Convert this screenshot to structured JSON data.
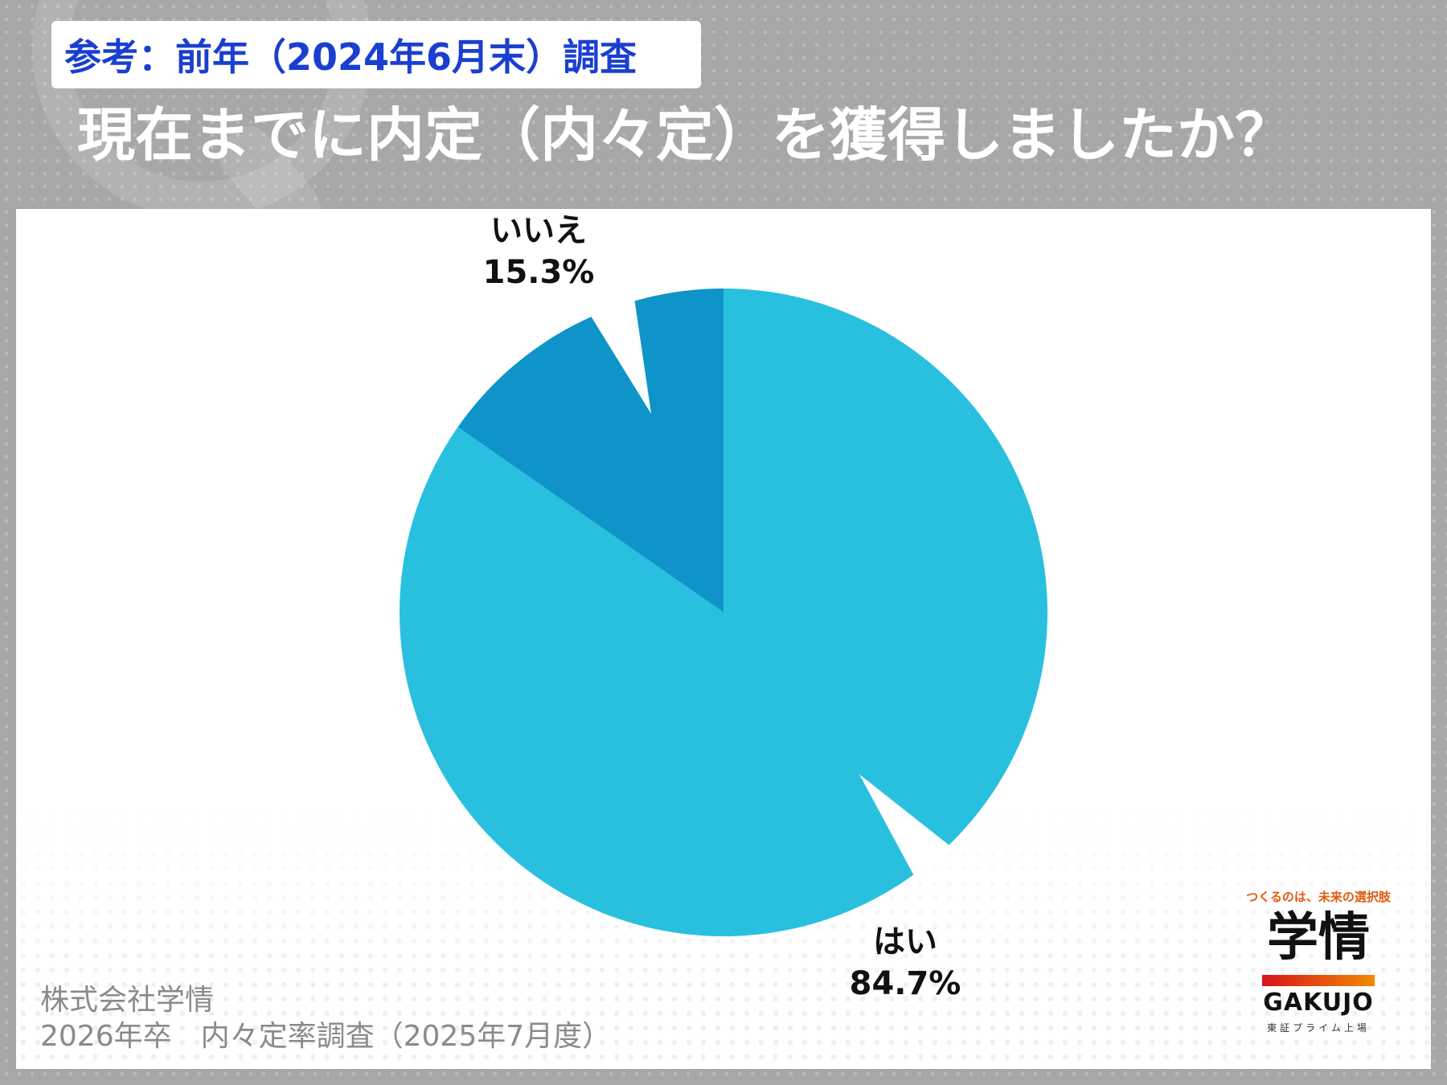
{
  "header": {
    "subtitle": "参考：前年（2024年6月末）調査",
    "title": "現在までに内定（内々定）を獲得しましたか？"
  },
  "chart_data": {
    "type": "pie",
    "slices": [
      {
        "label": "はい",
        "value": 84.7,
        "value_label": "84.7%",
        "color": "#29c0e0"
      },
      {
        "label": "いいえ",
        "value": 15.3,
        "value_label": "15.3%",
        "color": "#0e94c8"
      }
    ]
  },
  "footer": {
    "company": "株式会社学情",
    "survey": "2026年卒　内々定率調査（2025年7月度）"
  },
  "logo": {
    "tagline": "つくるのは、未来の選択肢",
    "name_jp": "学情",
    "name_en": "GAKUJO",
    "listing": "東証プライム上場"
  }
}
